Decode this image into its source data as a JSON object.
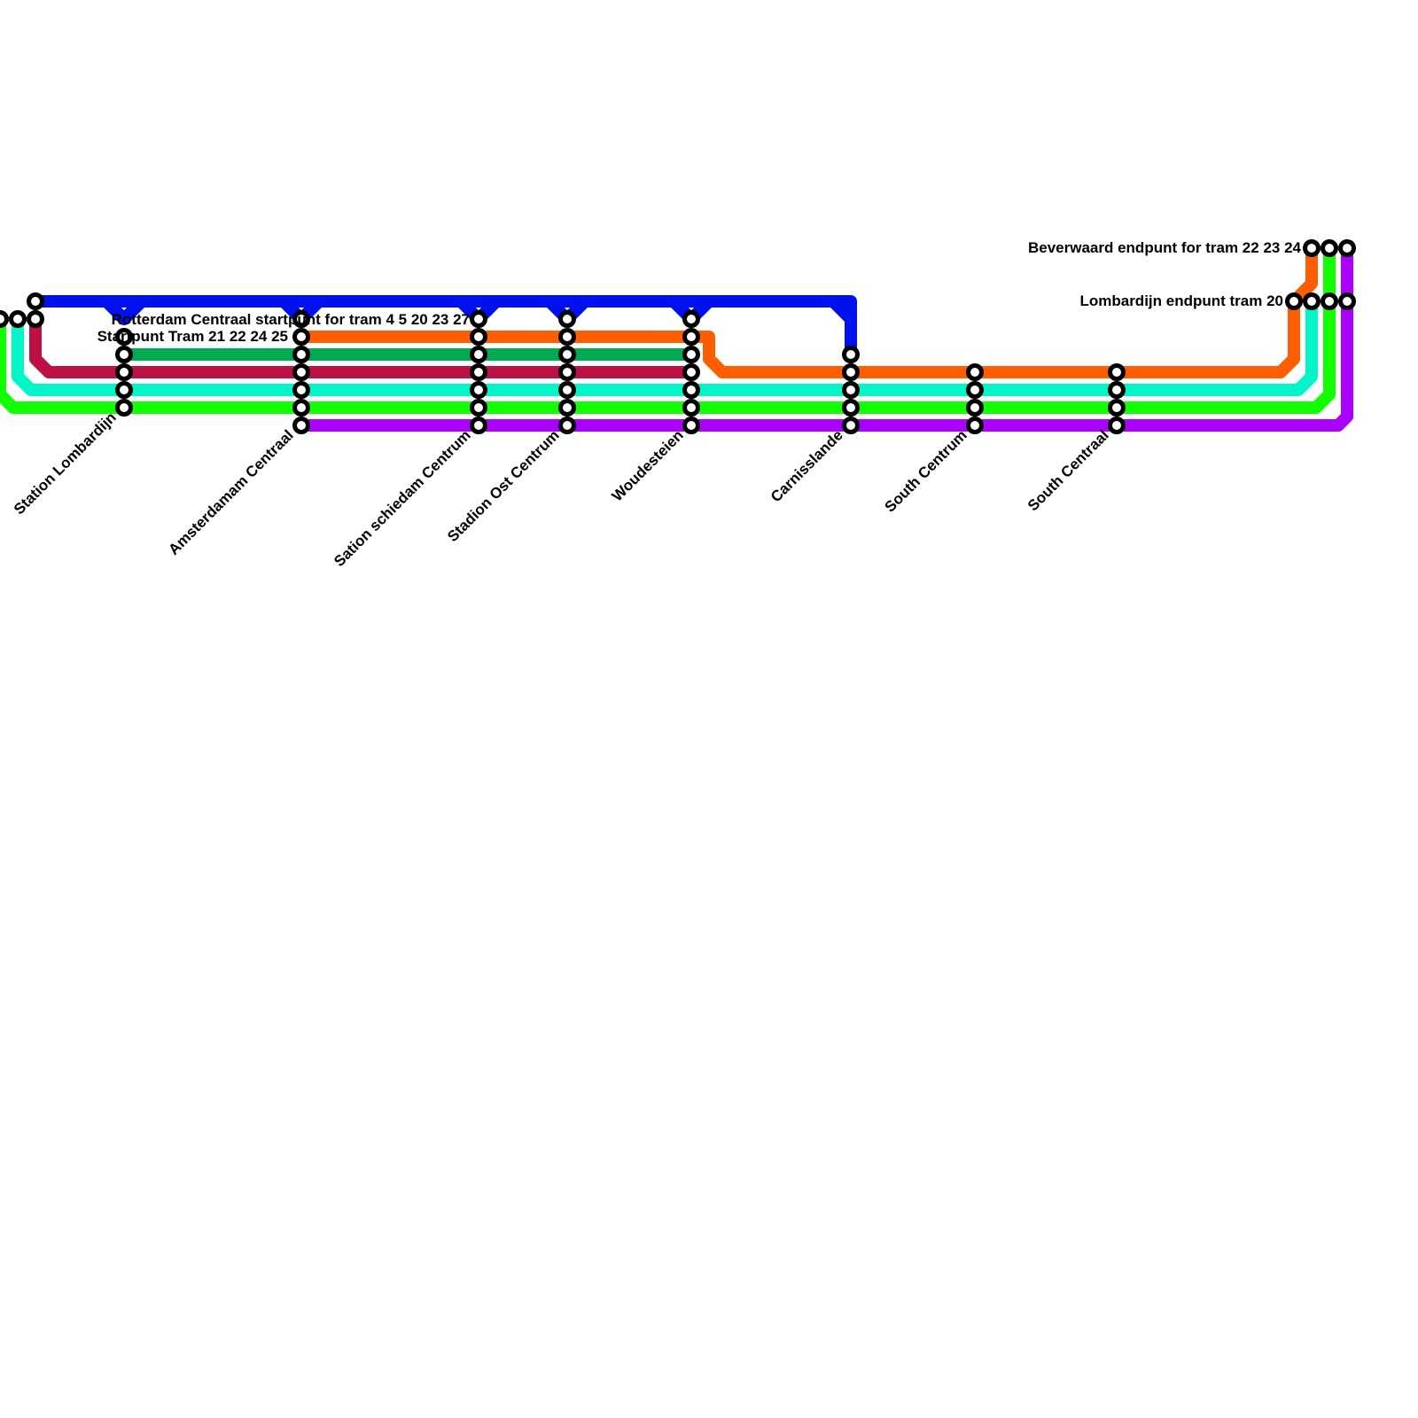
{
  "colors": {
    "blue": "#0011ee",
    "orange": "#ff5e00",
    "dark_green": "#00aa55",
    "crimson": "#bb1144",
    "aqua": "#00f5c8",
    "lime": "#11ff00",
    "purple": "#aa00ff",
    "stop_fill": "#ffffff",
    "stop_stroke": "#000000"
  },
  "labels": {
    "rotterdam_centraal": "Rotterdam Centraal startpunt for tram 4 5 20 23 27",
    "startpunt": "Startpunt Tram 21 22 24 25",
    "beverwaard": "Beverwaard endpunt for tram 22 23 24",
    "lombardijn_endpunt": "Lombardijn endpunt tram 20"
  },
  "stations": [
    "Station Lombardijn",
    "Amsterdamam Centraal",
    "Sation schiedam Centrum",
    "Stadion Ost Centrum",
    "Woudesteien",
    "Carnisslande",
    "South Centrum",
    "South Centraal"
  ]
}
